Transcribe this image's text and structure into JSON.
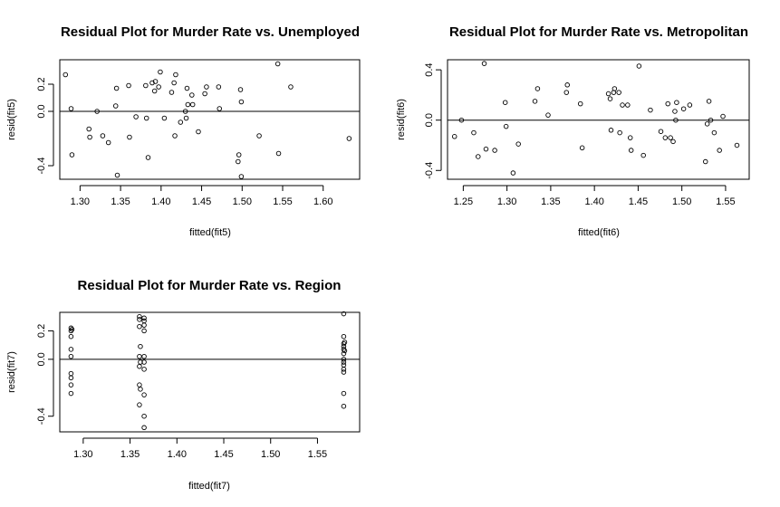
{
  "chart_data": [
    {
      "type": "scatter",
      "title": "Residual Plot for Murder Rate vs. Unemployed",
      "xlabel": "fitted(fit5)",
      "ylabel": "resid(fit5)",
      "xlim": [
        1.275,
        1.645
      ],
      "ylim": [
        -0.5,
        0.38
      ],
      "xticks": [
        1.3,
        1.35,
        1.4,
        1.45,
        1.5,
        1.55,
        1.6
      ],
      "xtick_labels": [
        "1.30",
        "1.35",
        "1.40",
        "1.45",
        "1.50",
        "1.55",
        "1.60"
      ],
      "yticks": [
        -0.4,
        0.0,
        0.2
      ],
      "ytick_labels": [
        "-0.4",
        "0.0",
        "0.2"
      ],
      "hline": 0,
      "points": [
        [
          1.282,
          0.27
        ],
        [
          1.289,
          0.02
        ],
        [
          1.29,
          -0.32
        ],
        [
          1.311,
          -0.13
        ],
        [
          1.312,
          -0.19
        ],
        [
          1.321,
          0.0
        ],
        [
          1.328,
          -0.18
        ],
        [
          1.335,
          -0.23
        ],
        [
          1.344,
          0.04
        ],
        [
          1.345,
          0.17
        ],
        [
          1.346,
          -0.47
        ],
        [
          1.36,
          0.19
        ],
        [
          1.361,
          -0.19
        ],
        [
          1.369,
          -0.04
        ],
        [
          1.381,
          0.19
        ],
        [
          1.382,
          -0.05
        ],
        [
          1.384,
          -0.34
        ],
        [
          1.389,
          0.21
        ],
        [
          1.392,
          0.15
        ],
        [
          1.393,
          0.22
        ],
        [
          1.397,
          0.18
        ],
        [
          1.399,
          0.29
        ],
        [
          1.404,
          -0.05
        ],
        [
          1.413,
          0.14
        ],
        [
          1.416,
          0.21
        ],
        [
          1.417,
          -0.18
        ],
        [
          1.418,
          0.27
        ],
        [
          1.424,
          -0.08
        ],
        [
          1.43,
          0.0
        ],
        [
          1.431,
          -0.05
        ],
        [
          1.432,
          0.17
        ],
        [
          1.433,
          0.05
        ],
        [
          1.438,
          0.12
        ],
        [
          1.439,
          0.05
        ],
        [
          1.446,
          -0.15
        ],
        [
          1.454,
          0.13
        ],
        [
          1.456,
          0.18
        ],
        [
          1.471,
          0.18
        ],
        [
          1.472,
          0.02
        ],
        [
          1.495,
          -0.37
        ],
        [
          1.496,
          -0.32
        ],
        [
          1.498,
          0.16
        ],
        [
          1.499,
          0.07
        ],
        [
          1.499,
          -0.48
        ],
        [
          1.521,
          -0.18
        ],
        [
          1.544,
          0.35
        ],
        [
          1.545,
          -0.31
        ],
        [
          1.56,
          0.18
        ],
        [
          1.632,
          -0.2
        ]
      ]
    },
    {
      "type": "scatter",
      "title": "Residual Plot for Murder Rate vs. Metropolitan",
      "xlabel": "fitted(fit6)",
      "ylabel": "resid(fit6)",
      "xlim": [
        1.232,
        1.577
      ],
      "ylim": [
        -0.47,
        0.48
      ],
      "xticks": [
        1.25,
        1.3,
        1.35,
        1.4,
        1.45,
        1.5,
        1.55
      ],
      "xtick_labels": [
        "1.25",
        "1.30",
        "1.35",
        "1.40",
        "1.45",
        "1.50",
        "1.55"
      ],
      "yticks": [
        -0.4,
        0.0,
        0.4
      ],
      "ytick_labels": [
        "-0.4",
        "0.0",
        "0.4"
      ],
      "hline": 0,
      "points": [
        [
          1.24,
          -0.13
        ],
        [
          1.248,
          0.0
        ],
        [
          1.262,
          -0.1
        ],
        [
          1.267,
          -0.29
        ],
        [
          1.274,
          0.45
        ],
        [
          1.276,
          -0.23
        ],
        [
          1.286,
          -0.24
        ],
        [
          1.298,
          0.14
        ],
        [
          1.299,
          -0.05
        ],
        [
          1.307,
          -0.42
        ],
        [
          1.313,
          -0.19
        ],
        [
          1.332,
          0.15
        ],
        [
          1.335,
          0.25
        ],
        [
          1.347,
          0.04
        ],
        [
          1.368,
          0.22
        ],
        [
          1.369,
          0.28
        ],
        [
          1.384,
          0.13
        ],
        [
          1.386,
          -0.22
        ],
        [
          1.416,
          0.21
        ],
        [
          1.418,
          0.17
        ],
        [
          1.419,
          -0.08
        ],
        [
          1.422,
          0.22
        ],
        [
          1.423,
          0.25
        ],
        [
          1.428,
          0.22
        ],
        [
          1.429,
          -0.1
        ],
        [
          1.432,
          0.12
        ],
        [
          1.438,
          0.12
        ],
        [
          1.441,
          -0.14
        ],
        [
          1.442,
          -0.24
        ],
        [
          1.451,
          0.43
        ],
        [
          1.456,
          -0.28
        ],
        [
          1.464,
          0.08
        ],
        [
          1.476,
          -0.09
        ],
        [
          1.481,
          -0.14
        ],
        [
          1.484,
          0.13
        ],
        [
          1.487,
          -0.14
        ],
        [
          1.49,
          -0.17
        ],
        [
          1.492,
          0.07
        ],
        [
          1.493,
          0.0
        ],
        [
          1.494,
          0.14
        ],
        [
          1.502,
          0.09
        ],
        [
          1.509,
          0.12
        ],
        [
          1.527,
          -0.33
        ],
        [
          1.529,
          -0.03
        ],
        [
          1.531,
          0.15
        ],
        [
          1.533,
          0.0
        ],
        [
          1.537,
          -0.1
        ],
        [
          1.543,
          -0.24
        ],
        [
          1.547,
          0.03
        ],
        [
          1.563,
          -0.2
        ]
      ]
    },
    {
      "type": "scatter",
      "title": "Residual Plot for Murder Rate vs. Region",
      "xlabel": "fitted(fit7)",
      "ylabel": "resid(fit7)",
      "xlim": [
        1.275,
        1.595
      ],
      "ylim": [
        -0.51,
        0.33
      ],
      "xticks": [
        1.3,
        1.35,
        1.4,
        1.45,
        1.5,
        1.55
      ],
      "xtick_labels": [
        "1.30",
        "1.35",
        "1.40",
        "1.45",
        "1.50",
        "1.55"
      ],
      "yticks": [
        -0.4,
        0.0,
        0.2
      ],
      "ytick_labels": [
        "-0.4",
        "0.0",
        "0.2"
      ],
      "hline": 0,
      "points": [
        [
          1.287,
          0.22
        ],
        [
          1.287,
          0.2
        ],
        [
          1.287,
          0.16
        ],
        [
          1.287,
          0.07
        ],
        [
          1.287,
          0.02
        ],
        [
          1.287,
          -0.1
        ],
        [
          1.287,
          -0.13
        ],
        [
          1.287,
          -0.18
        ],
        [
          1.287,
          -0.24
        ],
        [
          1.288,
          0.21
        ],
        [
          1.36,
          0.3
        ],
        [
          1.36,
          0.28
        ],
        [
          1.36,
          0.23
        ],
        [
          1.361,
          0.09
        ],
        [
          1.36,
          0.02
        ],
        [
          1.361,
          -0.02
        ],
        [
          1.36,
          -0.05
        ],
        [
          1.36,
          -0.18
        ],
        [
          1.361,
          -0.21
        ],
        [
          1.36,
          -0.32
        ],
        [
          1.365,
          0.27
        ],
        [
          1.365,
          0.24
        ],
        [
          1.365,
          0.2
        ],
        [
          1.365,
          0.02
        ],
        [
          1.365,
          -0.02
        ],
        [
          1.365,
          -0.07
        ],
        [
          1.365,
          -0.25
        ],
        [
          1.365,
          -0.4
        ],
        [
          1.365,
          -0.48
        ],
        [
          1.365,
          0.29
        ],
        [
          1.578,
          0.32
        ],
        [
          1.578,
          0.16
        ],
        [
          1.578,
          0.11
        ],
        [
          1.578,
          0.09
        ],
        [
          1.578,
          0.07
        ],
        [
          1.578,
          0.04
        ],
        [
          1.578,
          0.0
        ],
        [
          1.578,
          -0.02
        ],
        [
          1.578,
          -0.04
        ],
        [
          1.578,
          -0.07
        ],
        [
          1.578,
          -0.09
        ],
        [
          1.578,
          -0.24
        ],
        [
          1.578,
          -0.33
        ],
        [
          1.579,
          0.12
        ],
        [
          1.579,
          0.06
        ]
      ]
    }
  ]
}
